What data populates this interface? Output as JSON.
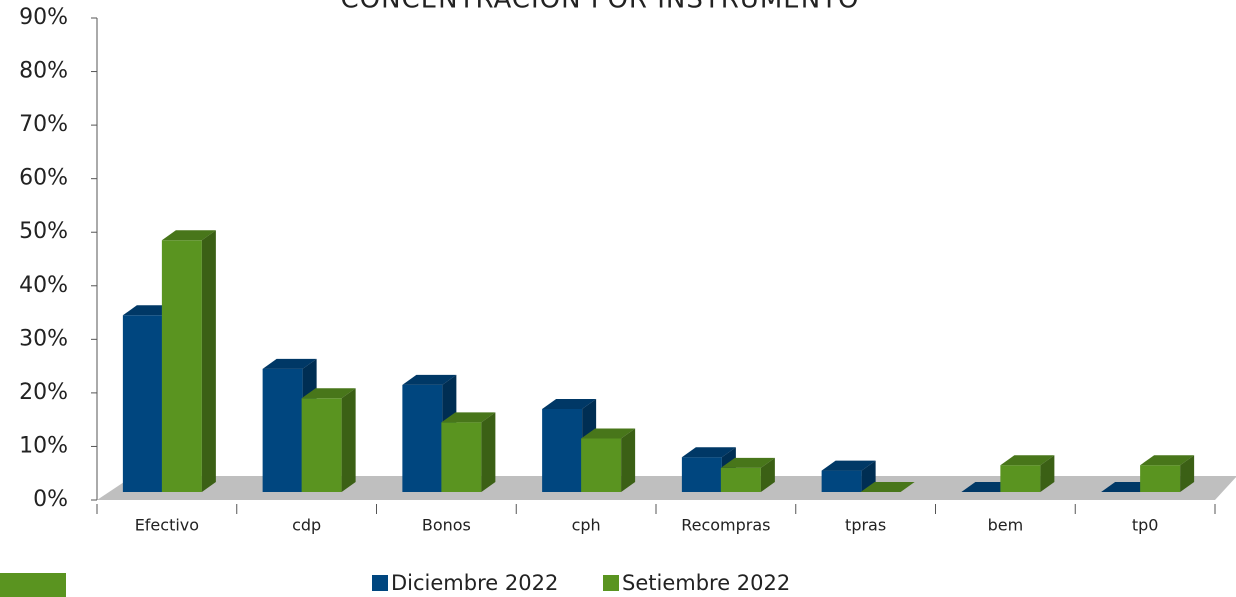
{
  "chart_data": {
    "type": "bar3d",
    "title": "CONCENTRACIÓN POR INSTRUMENTO",
    "categories": [
      "Efectivo",
      "cdp",
      "Bonos",
      "cph",
      "Recompras",
      "tpras",
      "bem",
      "tp0"
    ],
    "series": [
      {
        "name": "Diciembre 2022",
        "color": "#00467f",
        "values": [
          33,
          23,
          20,
          15.5,
          6.5,
          4,
          0,
          0
        ]
      },
      {
        "name": "Setiembre 2022",
        "color": "#5a9420",
        "values": [
          47,
          17.5,
          13,
          10,
          4.5,
          0,
          5,
          5
        ]
      }
    ],
    "ylim": [
      0,
      90
    ],
    "yticks": [
      {
        "value": 0,
        "label": "0%"
      },
      {
        "value": 10,
        "label": "10%"
      },
      {
        "value": 20,
        "label": "20%"
      },
      {
        "value": 30,
        "label": "30%"
      },
      {
        "value": 40,
        "label": "40%"
      },
      {
        "value": 50,
        "label": "50%"
      },
      {
        "value": 60,
        "label": "60%"
      },
      {
        "value": 70,
        "label": "70%"
      },
      {
        "value": 80,
        "label": "80%"
      },
      {
        "value": 90,
        "label": "90%"
      }
    ]
  }
}
